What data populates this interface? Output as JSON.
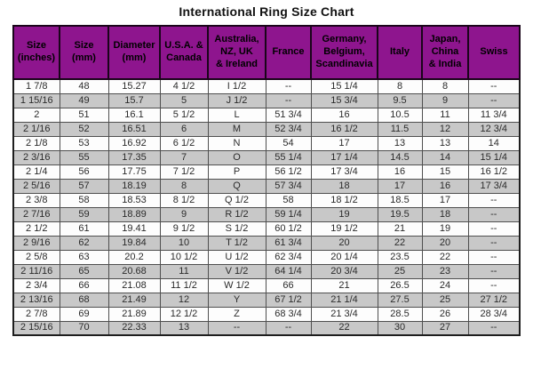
{
  "title": "International Ring Size Chart",
  "colors": {
    "header_bg": "#8E158E",
    "row_alt": "#C8C8C8",
    "row": "#FDFDFD",
    "border": "#4F4F4F",
    "outer_border": "#1E1E1E",
    "header_border": "#1A051A",
    "header_text": "#000000",
    "cell_text": "#2B2B2B",
    "title_text": "#111111"
  },
  "chart_data": {
    "type": "table",
    "title": "International Ring Size Chart",
    "columns": [
      "Size\n(inches)",
      "Size\n(mm)",
      "Diameter\n(mm)",
      "U.S.A. &\nCanada",
      "Australia,\nNZ, UK\n& Ireland",
      "France",
      "Germany,\nBelgium,\nScandinavia",
      "Italy",
      "Japan,\nChina\n& India",
      "Swiss"
    ],
    "rows": [
      [
        "1 7/8",
        "48",
        "15.27",
        "4 1/2",
        "I 1/2",
        "--",
        "15 1/4",
        "8",
        "8",
        "--"
      ],
      [
        "1 15/16",
        "49",
        "15.7",
        "5",
        "J 1/2",
        "--",
        "15 3/4",
        "9.5",
        "9",
        "--"
      ],
      [
        "2",
        "51",
        "16.1",
        "5 1/2",
        "L",
        "51 3/4",
        "16",
        "10.5",
        "11",
        "11 3/4"
      ],
      [
        "2 1/16",
        "52",
        "16.51",
        "6",
        "M",
        "52 3/4",
        "16 1/2",
        "11.5",
        "12",
        "12 3/4"
      ],
      [
        "2 1/8",
        "53",
        "16.92",
        "6 1/2",
        "N",
        "54",
        "17",
        "13",
        "13",
        "14"
      ],
      [
        "2 3/16",
        "55",
        "17.35",
        "7",
        "O",
        "55 1/4",
        "17 1/4",
        "14.5",
        "14",
        "15 1/4"
      ],
      [
        "2 1/4",
        "56",
        "17.75",
        "7 1/2",
        "P",
        "56 1/2",
        "17 3/4",
        "16",
        "15",
        "16 1/2"
      ],
      [
        "2 5/16",
        "57",
        "18.19",
        "8",
        "Q",
        "57 3/4",
        "18",
        "17",
        "16",
        "17 3/4"
      ],
      [
        "2 3/8",
        "58",
        "18.53",
        "8 1/2",
        "Q 1/2",
        "58",
        "18 1/2",
        "18.5",
        "17",
        "--"
      ],
      [
        "2 7/16",
        "59",
        "18.89",
        "9",
        "R 1/2",
        "59 1/4",
        "19",
        "19.5",
        "18",
        "--"
      ],
      [
        "2 1/2",
        "61",
        "19.41",
        "9 1/2",
        "S 1/2",
        "60 1/2",
        "19 1/2",
        "21",
        "19",
        "--"
      ],
      [
        "2 9/16",
        "62",
        "19.84",
        "10",
        "T 1/2",
        "61 3/4",
        "20",
        "22",
        "20",
        "--"
      ],
      [
        "2 5/8",
        "63",
        "20.2",
        "10 1/2",
        "U 1/2",
        "62 3/4",
        "20 1/4",
        "23.5",
        "22",
        "--"
      ],
      [
        "2 11/16",
        "65",
        "20.68",
        "11",
        "V 1/2",
        "64 1/4",
        "20 3/4",
        "25",
        "23",
        "--"
      ],
      [
        "2 3/4",
        "66",
        "21.08",
        "11 1/2",
        "W 1/2",
        "66",
        "21",
        "26.5",
        "24",
        "--"
      ],
      [
        "2 13/16",
        "68",
        "21.49",
        "12",
        "Y",
        "67 1/2",
        "21 1/4",
        "27.5",
        "25",
        "27 1/2"
      ],
      [
        "2 7/8",
        "69",
        "21.89",
        "12 1/2",
        "Z",
        "68 3/4",
        "21 3/4",
        "28.5",
        "26",
        "28 3/4"
      ],
      [
        "2 15/16",
        "70",
        "22.33",
        "13",
        "--",
        "--",
        "22",
        "30",
        "27",
        "--"
      ]
    ]
  }
}
